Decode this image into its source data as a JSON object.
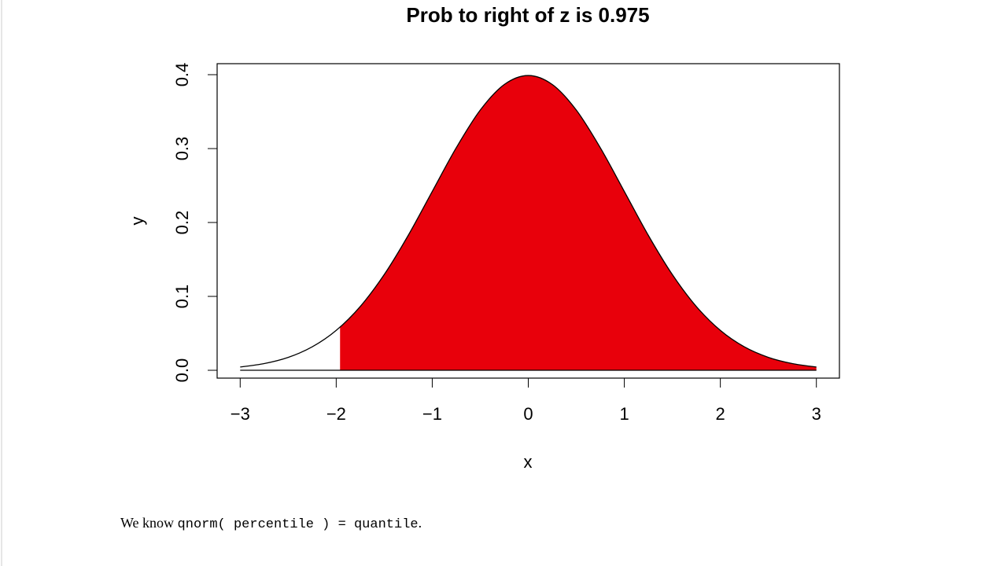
{
  "chart_data": {
    "type": "area",
    "title": "Prob to right of z is 0.975",
    "xlabel": "x",
    "ylabel": "y",
    "x": [
      -3,
      -2.75,
      -2.5,
      -2.25,
      -2,
      -1.75,
      -1.5,
      -1.25,
      -1,
      -0.75,
      -0.5,
      -0.25,
      0,
      0.25,
      0.5,
      0.75,
      1,
      1.25,
      1.5,
      1.75,
      2,
      2.25,
      2.5,
      2.75,
      3
    ],
    "values": [
      0.0044,
      0.0091,
      0.0175,
      0.0317,
      0.054,
      0.0863,
      0.1295,
      0.1826,
      0.242,
      0.3011,
      0.3521,
      0.3867,
      0.3989,
      0.3867,
      0.3521,
      0.3011,
      0.242,
      0.1826,
      0.1295,
      0.0863,
      0.054,
      0.0317,
      0.0175,
      0.0091,
      0.0044
    ],
    "color": "#000000",
    "shade": {
      "color": "#e8000b",
      "x": [
        -1.96,
        -1.75,
        -1.5,
        -1.25,
        -1,
        -0.75,
        -0.5,
        -0.25,
        0,
        0.25,
        0.5,
        0.75,
        1,
        1.25,
        1.5,
        1.75,
        2,
        2.25,
        2.5,
        2.75,
        3
      ],
      "values": [
        0.0584,
        0.0863,
        0.1295,
        0.1826,
        0.242,
        0.3011,
        0.3521,
        0.3867,
        0.3989,
        0.3867,
        0.3521,
        0.3011,
        0.242,
        0.1826,
        0.1295,
        0.0863,
        0.054,
        0.0317,
        0.0175,
        0.0091,
        0.0044
      ]
    },
    "xlim": [
      -3.24,
      3.24
    ],
    "ylim": [
      -0.0106,
      0.4149
    ],
    "xticks": [
      {
        "value": -3,
        "label": "−3"
      },
      {
        "value": -2,
        "label": "−2"
      },
      {
        "value": -1,
        "label": "−1"
      },
      0,
      1,
      2,
      3
    ],
    "yticks": [
      {
        "value": 0,
        "label": "0.0"
      },
      0.1,
      0.2,
      0.3,
      0.4
    ],
    "grid": false
  },
  "caption": [
    "We know ",
    "qnorm( percentile ) = quantile",
    "."
  ]
}
